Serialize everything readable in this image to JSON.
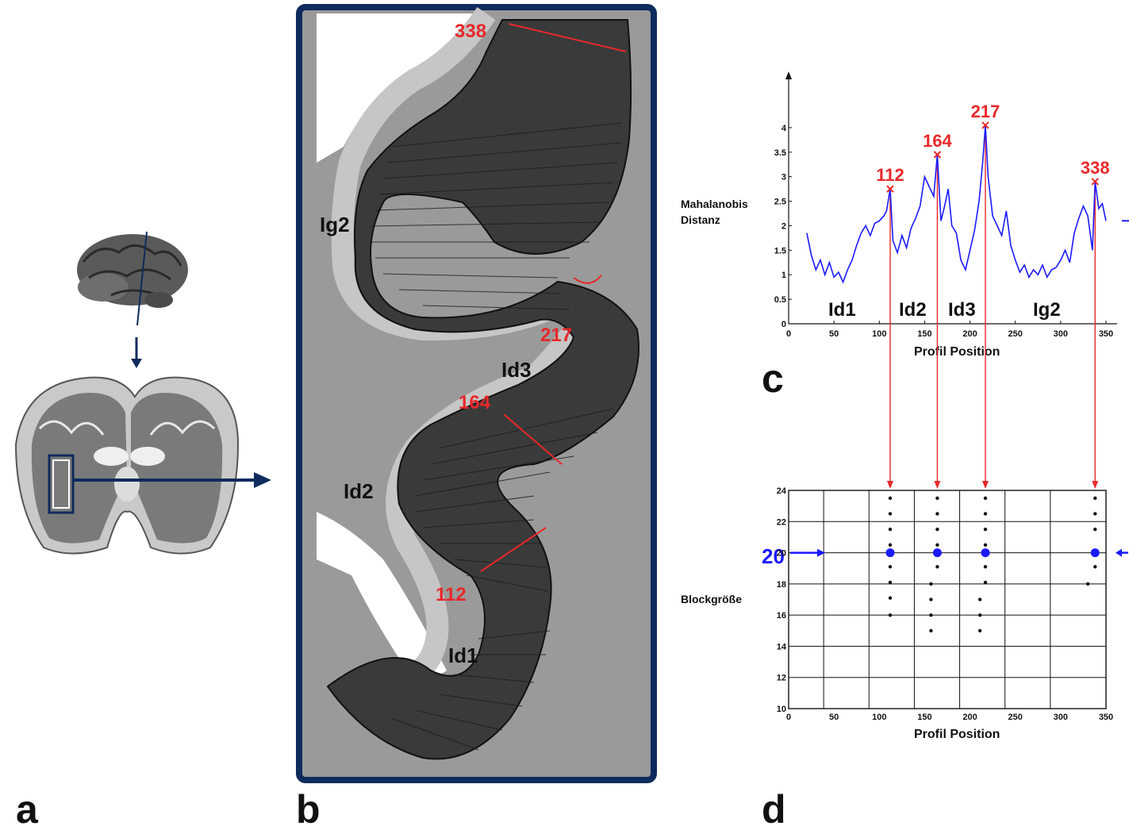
{
  "panels": {
    "a": "a",
    "b": "b",
    "c": "c",
    "d": "d"
  },
  "colors": {
    "frame": "#0f2b5c",
    "red": "#e8282a",
    "blue": "#1a1aff",
    "tissue": "#8c8c8c",
    "background": "#ffffff"
  },
  "section": {
    "labels": {
      "top": "338",
      "right": "217",
      "mid": "164",
      "bottom": "112"
    },
    "regions": {
      "lg2": "Ig2",
      "ld3": "Id3",
      "ld2": "Id2",
      "ld1": "Id1"
    }
  },
  "chart_c": {
    "ylabel_line1": "Mahalanobis",
    "ylabel_line2": "Distanz",
    "xlabel": "Profil Position",
    "peak_labels": [
      "112",
      "164",
      "217",
      "338"
    ],
    "region_labels": [
      "Id1",
      "Id2",
      "Id3",
      "Ig2"
    ]
  },
  "chart_d": {
    "ylabel": "Blockgröße",
    "xlabel": "Profil Position",
    "marker_label": "20"
  },
  "chart_data": [
    {
      "type": "line",
      "xlabel": "Profil Position",
      "ylabel": "Mahalanobis Distanz",
      "xlim": [
        0,
        350
      ],
      "ylim": [
        0,
        4.5
      ],
      "xticks": [
        0,
        50,
        100,
        150,
        200,
        250,
        300,
        350
      ],
      "yticks": [
        0,
        0.5,
        1,
        1.5,
        2,
        2.5,
        3,
        3.5,
        4
      ],
      "series": [
        {
          "color": "#1a1aff",
          "x": [
            20,
            25,
            30,
            35,
            40,
            45,
            50,
            55,
            60,
            65,
            70,
            75,
            80,
            85,
            90,
            95,
            100,
            105,
            108,
            112,
            115,
            120,
            125,
            130,
            135,
            140,
            145,
            150,
            155,
            160,
            164,
            168,
            172,
            176,
            180,
            185,
            190,
            195,
            200,
            205,
            210,
            214,
            217,
            220,
            225,
            230,
            235,
            240,
            245,
            250,
            255,
            260,
            265,
            270,
            275,
            280,
            285,
            290,
            295,
            300,
            305,
            310,
            315,
            320,
            325,
            330,
            335,
            338,
            342,
            346,
            350
          ],
          "y": [
            1.85,
            1.4,
            1.1,
            1.3,
            1.0,
            1.25,
            0.95,
            1.05,
            0.85,
            1.1,
            1.3,
            1.6,
            1.85,
            2.0,
            1.8,
            2.05,
            2.1,
            2.2,
            2.3,
            2.75,
            1.7,
            1.45,
            1.8,
            1.55,
            1.95,
            2.15,
            2.4,
            3.0,
            2.8,
            2.6,
            3.45,
            2.1,
            2.4,
            2.75,
            2.0,
            1.85,
            1.3,
            1.1,
            1.5,
            1.9,
            2.5,
            3.3,
            4.05,
            3.0,
            2.2,
            2.0,
            1.8,
            2.3,
            1.6,
            1.3,
            1.05,
            1.2,
            0.95,
            1.1,
            1.0,
            1.2,
            0.95,
            1.1,
            1.15,
            1.3,
            1.5,
            1.25,
            1.85,
            2.15,
            2.4,
            2.2,
            1.5,
            2.9,
            2.35,
            2.45,
            2.1
          ]
        }
      ],
      "peaks": [
        {
          "x": 112,
          "y": 2.75
        },
        {
          "x": 164,
          "y": 3.45
        },
        {
          "x": 217,
          "y": 4.05
        },
        {
          "x": 338,
          "y": 2.9
        }
      ]
    },
    {
      "type": "scatter",
      "xlabel": "Profil Position",
      "ylabel": "Blockgröße",
      "xlim": [
        0,
        350
      ],
      "ylim": [
        10,
        24
      ],
      "xticks": [
        0,
        50,
        100,
        150,
        200,
        250,
        300,
        350
      ],
      "yticks": [
        10,
        12,
        14,
        16,
        18,
        20,
        22,
        24
      ],
      "grid": true,
      "points": [
        {
          "x": 112,
          "y": 23.5
        },
        {
          "x": 112,
          "y": 22.5
        },
        {
          "x": 112,
          "y": 21.5
        },
        {
          "x": 112,
          "y": 20.5
        },
        {
          "x": 112,
          "y": 19.1
        },
        {
          "x": 112,
          "y": 18.1
        },
        {
          "x": 112,
          "y": 17.1
        },
        {
          "x": 112,
          "y": 16.0
        },
        {
          "x": 164,
          "y": 23.5
        },
        {
          "x": 164,
          "y": 22.5
        },
        {
          "x": 164,
          "y": 21.5
        },
        {
          "x": 164,
          "y": 20.5
        },
        {
          "x": 164,
          "y": 19.1
        },
        {
          "x": 157,
          "y": 18.0
        },
        {
          "x": 157,
          "y": 17.0
        },
        {
          "x": 157,
          "y": 16.0
        },
        {
          "x": 157,
          "y": 15.0
        },
        {
          "x": 217,
          "y": 23.5
        },
        {
          "x": 217,
          "y": 22.5
        },
        {
          "x": 217,
          "y": 21.5
        },
        {
          "x": 217,
          "y": 20.5
        },
        {
          "x": 217,
          "y": 19.1
        },
        {
          "x": 217,
          "y": 18.1
        },
        {
          "x": 211,
          "y": 17.0
        },
        {
          "x": 211,
          "y": 16.0
        },
        {
          "x": 211,
          "y": 15.0
        },
        {
          "x": 338,
          "y": 23.5
        },
        {
          "x": 338,
          "y": 22.5
        },
        {
          "x": 338,
          "y": 21.5
        },
        {
          "x": 338,
          "y": 19.1
        },
        {
          "x": 330,
          "y": 18.0
        }
      ],
      "selected": [
        {
          "x": 112,
          "y": 20
        },
        {
          "x": 164,
          "y": 20
        },
        {
          "x": 217,
          "y": 20
        },
        {
          "x": 338,
          "y": 20
        }
      ],
      "selected_color": "#1a1aff"
    }
  ]
}
